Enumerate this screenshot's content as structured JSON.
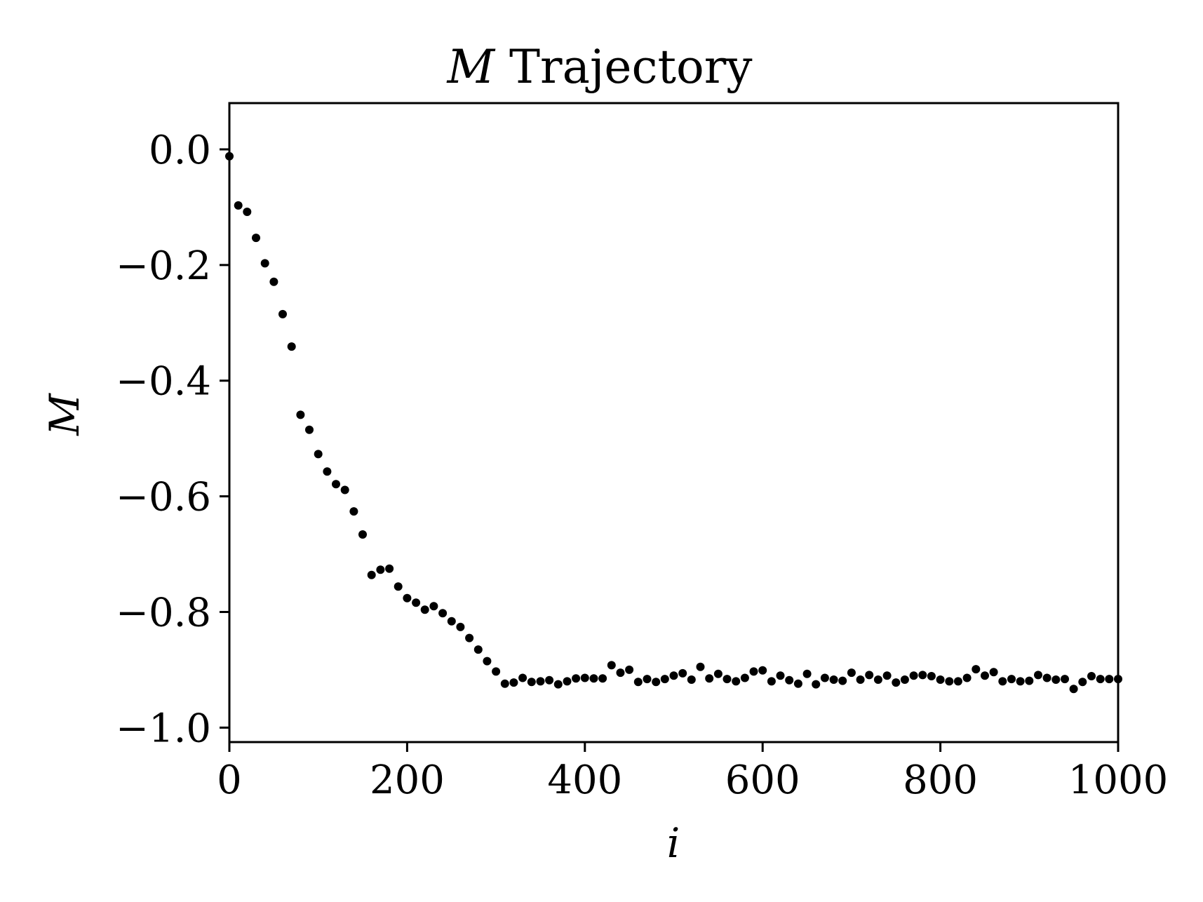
{
  "chart_data": {
    "type": "scatter",
    "title": {
      "symbol": "M",
      "text": "Trajectory"
    },
    "xlabel": "i",
    "ylabel": "M",
    "xlim": [
      0,
      1000
    ],
    "ylim": [
      -1.025,
      0.08
    ],
    "x_ticks": [
      {
        "value": 0,
        "label": "0"
      },
      {
        "value": 200,
        "label": "200"
      },
      {
        "value": 400,
        "label": "400"
      },
      {
        "value": 600,
        "label": "600"
      },
      {
        "value": 800,
        "label": "800"
      },
      {
        "value": 1000,
        "label": "1000"
      }
    ],
    "y_ticks": [
      {
        "value": 0.0,
        "label": "0.0"
      },
      {
        "value": -0.2,
        "label": "−0.2"
      },
      {
        "value": -0.4,
        "label": "−0.4"
      },
      {
        "value": -0.6,
        "label": "−0.6"
      },
      {
        "value": -0.8,
        "label": "−0.8"
      },
      {
        "value": -1.0,
        "label": "−1.0"
      }
    ],
    "grid": false,
    "marker_color": "#000000",
    "series": [
      {
        "x": [
          0,
          10,
          20,
          30,
          40,
          50,
          60,
          70,
          80,
          90,
          100,
          110,
          120,
          130,
          140,
          150,
          160,
          170,
          180,
          190,
          200,
          210,
          220,
          230,
          240,
          250,
          260,
          270,
          280,
          290,
          300,
          310,
          320,
          330,
          340,
          350,
          360,
          370,
          380,
          390,
          400,
          410,
          420,
          430,
          440,
          450,
          460,
          470,
          480,
          490,
          500,
          510,
          520,
          530,
          540,
          550,
          560,
          570,
          580,
          590,
          600,
          610,
          620,
          630,
          640,
          650,
          660,
          670,
          680,
          690,
          700,
          710,
          720,
          730,
          740,
          750,
          760,
          770,
          780,
          790,
          800,
          810,
          820,
          830,
          840,
          850,
          860,
          870,
          880,
          890,
          900,
          910,
          920,
          930,
          940,
          950,
          960,
          970,
          980,
          990,
          1000
        ],
        "y": [
          -0.012,
          -0.097,
          -0.108,
          -0.153,
          -0.197,
          -0.229,
          -0.285,
          -0.341,
          -0.459,
          -0.485,
          -0.527,
          -0.557,
          -0.579,
          -0.589,
          -0.626,
          -0.666,
          -0.736,
          -0.727,
          -0.725,
          -0.756,
          -0.776,
          -0.784,
          -0.796,
          -0.79,
          -0.802,
          -0.816,
          -0.826,
          -0.845,
          -0.865,
          -0.885,
          -0.903,
          -0.924,
          -0.922,
          -0.914,
          -0.921,
          -0.92,
          -0.918,
          -0.925,
          -0.92,
          -0.915,
          -0.914,
          -0.915,
          -0.915,
          -0.892,
          -0.905,
          -0.9,
          -0.921,
          -0.916,
          -0.921,
          -0.916,
          -0.91,
          -0.906,
          -0.917,
          -0.895,
          -0.915,
          -0.907,
          -0.916,
          -0.92,
          -0.914,
          -0.903,
          -0.901,
          -0.92,
          -0.91,
          -0.918,
          -0.924,
          -0.907,
          -0.925,
          -0.914,
          -0.917,
          -0.919,
          -0.905,
          -0.917,
          -0.909,
          -0.917,
          -0.91,
          -0.922,
          -0.917,
          -0.91,
          -0.909,
          -0.911,
          -0.917,
          -0.92,
          -0.92,
          -0.914,
          -0.899,
          -0.91,
          -0.904,
          -0.92,
          -0.916,
          -0.92,
          -0.919,
          -0.909,
          -0.914,
          -0.917,
          -0.916,
          -0.933,
          -0.921,
          -0.911,
          -0.916,
          -0.916,
          -0.916
        ]
      }
    ]
  }
}
